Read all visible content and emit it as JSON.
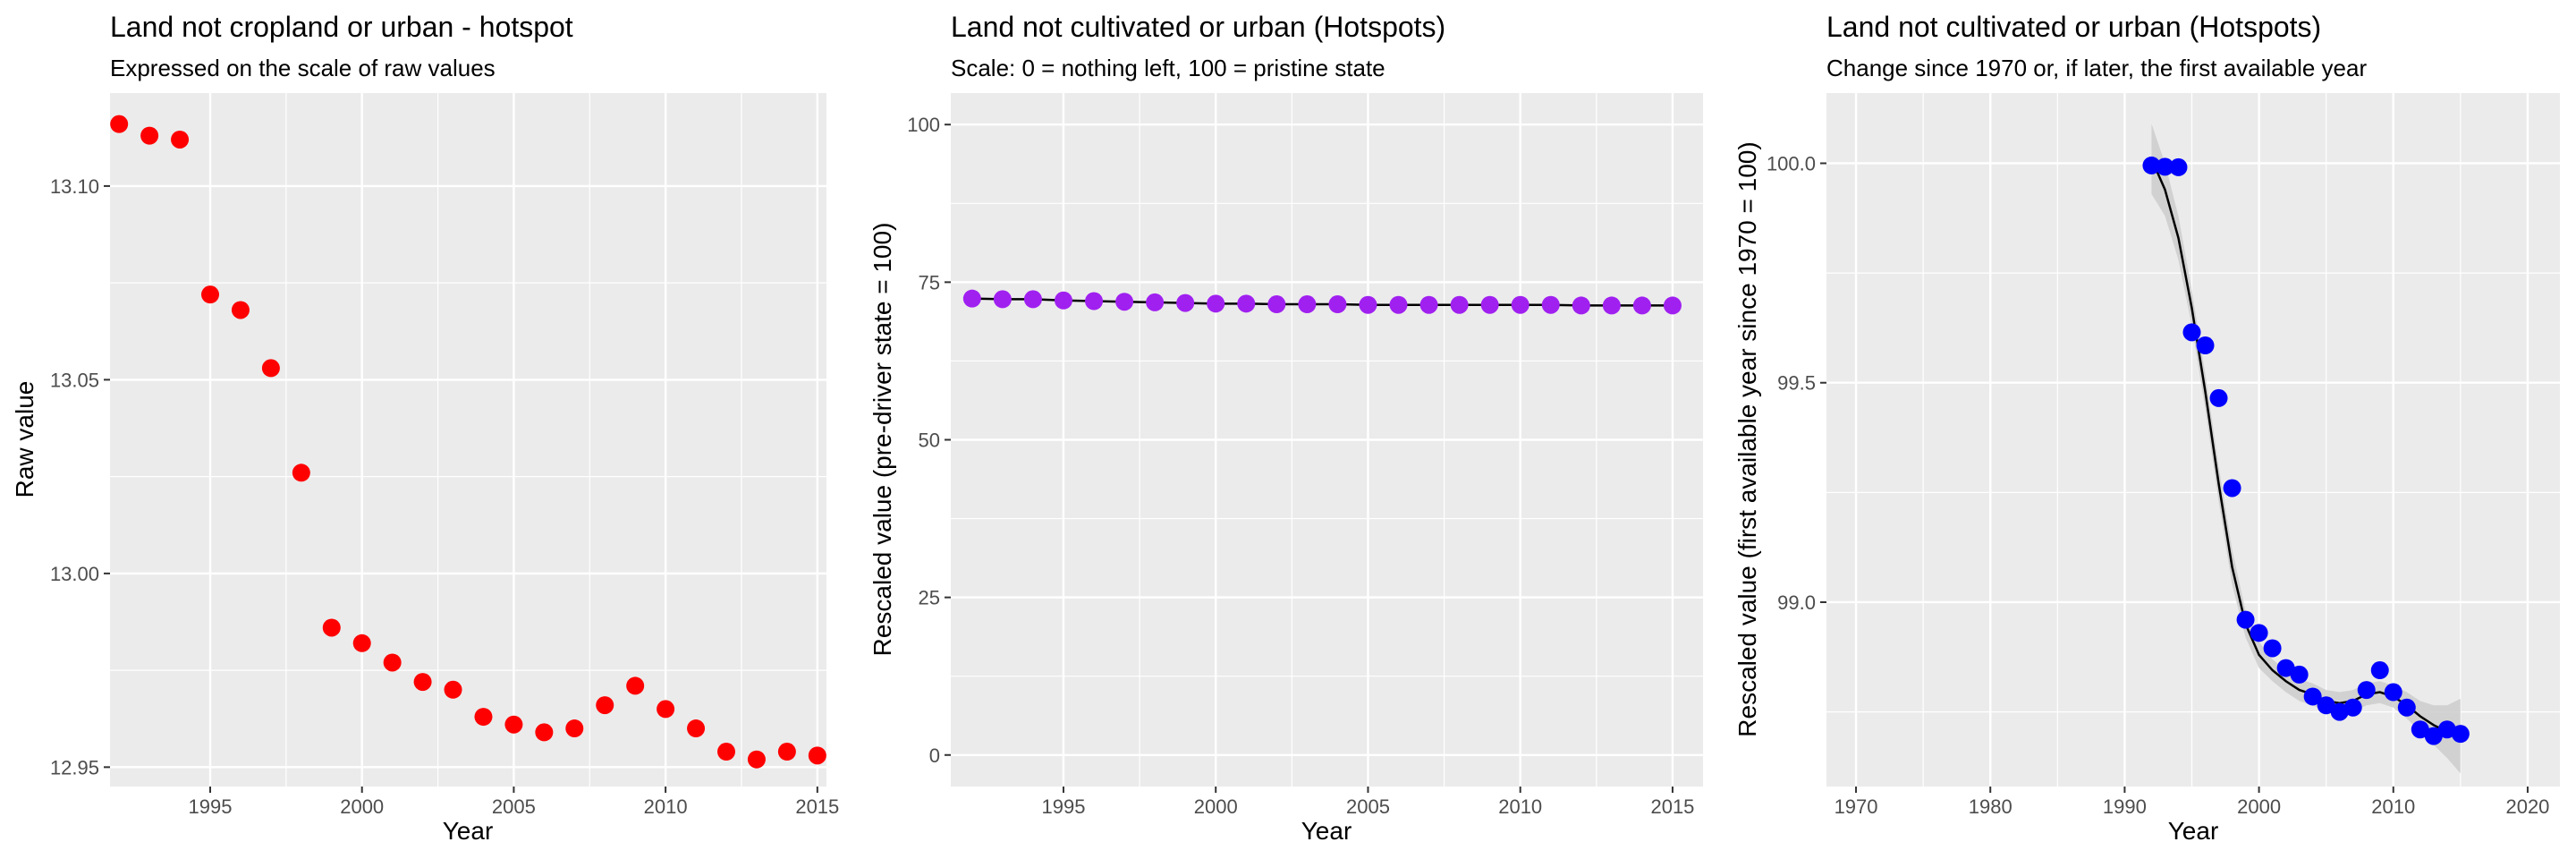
{
  "chart_data": [
    {
      "type": "scatter",
      "title": "Land not cropland or urban - hotspot",
      "subtitle": "Expressed on the scale of raw values",
      "xlabel": "Year",
      "ylabel": "Raw value",
      "xlim": [
        1991.7,
        2015.3
      ],
      "ylim": [
        12.945,
        13.124
      ],
      "xticks": [
        1995,
        2000,
        2005,
        2010,
        2015
      ],
      "yticks": [
        12.95,
        13.0,
        13.05,
        13.1
      ],
      "ytick_labels": [
        "12.95",
        "13.00",
        "13.05",
        "13.10"
      ],
      "grid": true,
      "point_color": "#ff0000",
      "series": [
        {
          "x": [
            1992,
            1993,
            1994,
            1995,
            1996,
            1997,
            1998,
            1999,
            2000,
            2001,
            2002,
            2003,
            2004,
            2005,
            2006,
            2007,
            2008,
            2009,
            2010,
            2011,
            2012,
            2013,
            2014,
            2015
          ],
          "values": [
            13.116,
            13.113,
            13.112,
            13.072,
            13.068,
            13.053,
            13.026,
            12.986,
            12.982,
            12.977,
            12.972,
            12.97,
            12.963,
            12.961,
            12.959,
            12.96,
            12.966,
            12.971,
            12.965,
            12.96,
            12.954,
            12.952,
            12.954,
            12.953
          ]
        }
      ]
    },
    {
      "type": "scatter",
      "title": "Land not cultivated or urban (Hotspots)",
      "subtitle": "Scale: 0 = nothing left, 100 = pristine state",
      "xlabel": "Year",
      "ylabel": "Rescaled value (pre-driver state = 100)",
      "xlim": [
        1991.3,
        2016.0
      ],
      "ylim": [
        -5,
        105
      ],
      "xticks": [
        1995,
        2000,
        2005,
        2010,
        2015
      ],
      "yticks": [
        0,
        25,
        50,
        75,
        100
      ],
      "ytick_labels": [
        "0",
        "25",
        "50",
        "75",
        "100"
      ],
      "grid": true,
      "point_color": "#a020f0",
      "line_color": "#000000",
      "series": [
        {
          "x": [
            1992,
            1993,
            1994,
            1995,
            1996,
            1997,
            1998,
            1999,
            2000,
            2001,
            2002,
            2003,
            2004,
            2005,
            2006,
            2007,
            2008,
            2009,
            2010,
            2011,
            2012,
            2013,
            2014,
            2015
          ],
          "values": [
            72.4,
            72.3,
            72.3,
            72.1,
            72.0,
            71.9,
            71.8,
            71.7,
            71.6,
            71.6,
            71.5,
            71.5,
            71.5,
            71.4,
            71.4,
            71.4,
            71.4,
            71.4,
            71.4,
            71.4,
            71.3,
            71.3,
            71.3,
            71.3
          ]
        }
      ]
    },
    {
      "type": "scatter",
      "title": "Land not cultivated or urban (Hotspots)",
      "subtitle": "Change since 1970 or, if later, the first available year",
      "xlabel": "Year",
      "ylabel": "Rescaled value (first available year since 1970 = 100)",
      "xlim": [
        1967.8,
        2022.4
      ],
      "ylim": [
        98.58,
        100.16
      ],
      "xticks": [
        1970,
        1980,
        1990,
        2000,
        2010,
        2020
      ],
      "yticks": [
        99.0,
        99.5,
        100.0
      ],
      "ytick_labels": [
        "99.0",
        "99.5",
        "100.0"
      ],
      "grid": true,
      "point_color": "#0000ff",
      "line_color": "#000000",
      "band_color": "#cccccc",
      "series": [
        {
          "x": [
            1992,
            1993,
            1994,
            1995,
            1996,
            1997,
            1998,
            1999,
            2000,
            2001,
            2002,
            2003,
            2004,
            2005,
            2006,
            2007,
            2008,
            2009,
            2010,
            2011,
            2012,
            2013,
            2014,
            2015
          ],
          "values": [
            99.995,
            99.992,
            99.991,
            99.615,
            99.585,
            99.465,
            99.26,
            98.96,
            98.93,
            98.895,
            98.85,
            98.835,
            98.785,
            98.765,
            98.75,
            98.76,
            98.8,
            98.845,
            98.795,
            98.76,
            98.71,
            98.695,
            98.71,
            98.7
          ]
        }
      ],
      "fit": {
        "x": [
          1992,
          1993,
          1994,
          1995,
          1996,
          1997,
          1998,
          1999,
          2000,
          2001,
          2002,
          2003,
          2004,
          2005,
          2006,
          2007,
          2008,
          2009,
          2010,
          2011,
          2012,
          2013,
          2014,
          2015
        ],
        "values": [
          100.01,
          99.94,
          99.83,
          99.67,
          99.48,
          99.27,
          99.08,
          98.95,
          98.88,
          98.845,
          98.82,
          98.8,
          98.79,
          98.775,
          98.77,
          98.775,
          98.79,
          98.795,
          98.785,
          98.765,
          98.74,
          98.72,
          98.705,
          98.695
        ],
        "lower": [
          99.93,
          99.88,
          99.78,
          99.63,
          99.44,
          99.23,
          99.04,
          98.92,
          98.85,
          98.82,
          98.795,
          98.775,
          98.765,
          98.75,
          98.745,
          98.75,
          98.765,
          98.77,
          98.76,
          98.735,
          98.705,
          98.675,
          98.645,
          98.61
        ],
        "upper": [
          100.09,
          100.0,
          99.88,
          99.71,
          99.52,
          99.31,
          99.12,
          98.98,
          98.91,
          98.87,
          98.845,
          98.825,
          98.815,
          98.8,
          98.795,
          98.8,
          98.815,
          98.82,
          98.81,
          98.795,
          98.775,
          98.765,
          98.765,
          98.78
        ]
      }
    }
  ]
}
